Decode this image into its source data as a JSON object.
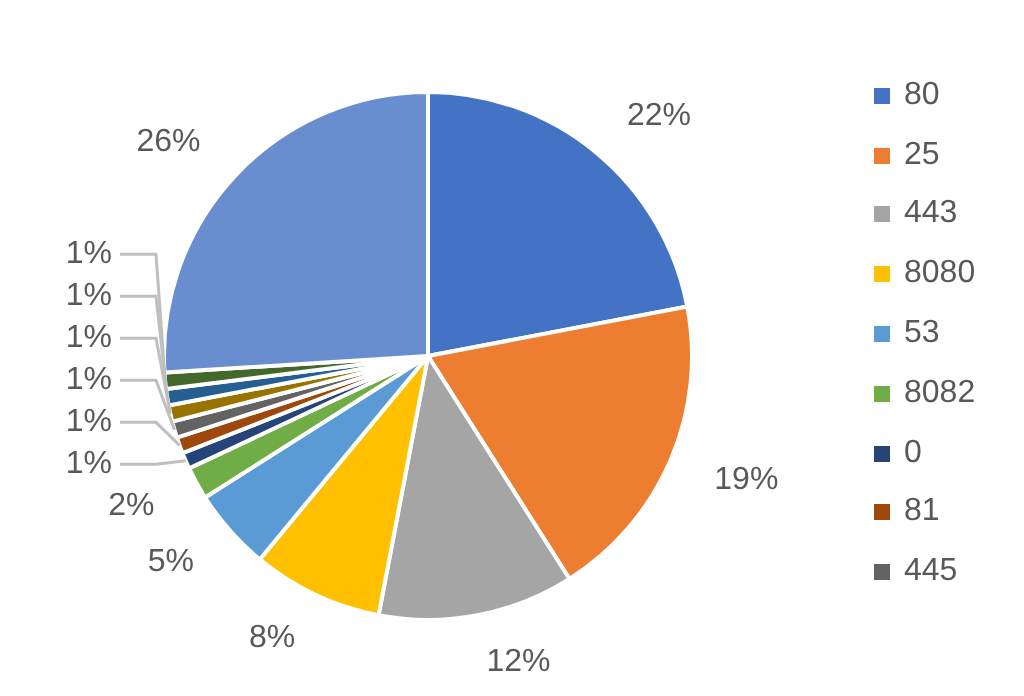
{
  "chart_data": {
    "type": "pie",
    "categories": [
      "80",
      "25",
      "443",
      "8080",
      "53",
      "8082",
      "0",
      "81",
      "445",
      null,
      null,
      null,
      null
    ],
    "values": [
      22,
      19,
      12,
      8,
      5,
      2,
      1,
      1,
      1,
      1,
      1,
      1,
      26
    ],
    "colors": [
      "#4472c4",
      "#ed7d31",
      "#a5a5a5",
      "#ffc000",
      "#5b9bd5",
      "#70ad47",
      "#264478",
      "#9e480e",
      "#636363",
      "#997300",
      "#255e91",
      "#43682b",
      "#698ed0"
    ],
    "value_labels": [
      "22%",
      "19%",
      "12%",
      "8%",
      "5%",
      "2%",
      "1%",
      "1%",
      "1%",
      "1%",
      "1%",
      "1%",
      "26%"
    ],
    "legend": "right"
  }
}
